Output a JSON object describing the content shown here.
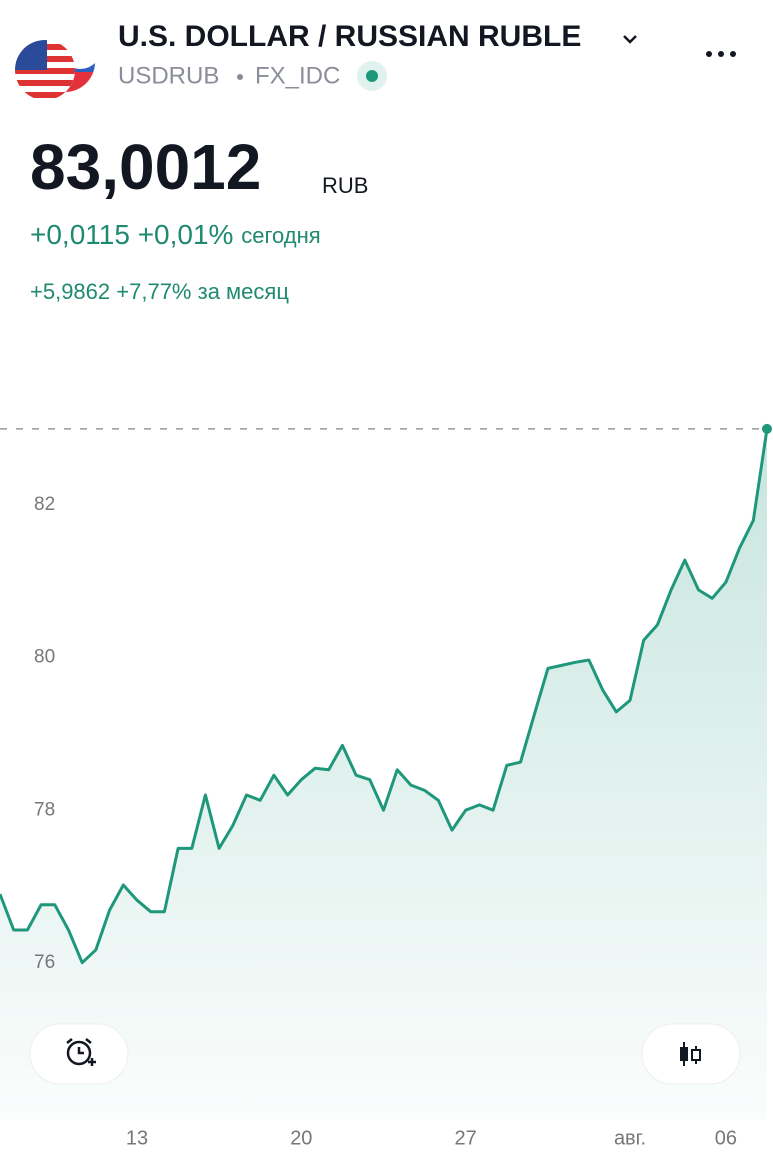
{
  "header": {
    "title": "U.S. DOLLAR / RUSSIAN RUBLE",
    "symbol": "USDRUB",
    "exchange": "FX_IDC",
    "price": "83,0012",
    "currency": "RUB",
    "change": "+0,0115",
    "change_pct": "+0,01%",
    "change_period": "сегодня",
    "month_change": "+5,9862",
    "month_change_pct": "+7,77%",
    "month_period": "за месяц"
  },
  "chart_data": {
    "type": "area",
    "color": "#1f977b",
    "categories": [
      null,
      null,
      null,
      null,
      null,
      null,
      null,
      null,
      null,
      null,
      "13",
      null,
      null,
      null,
      null,
      null,
      null,
      null,
      null,
      null,
      null,
      null,
      "20",
      null,
      null,
      null,
      null,
      null,
      null,
      null,
      null,
      null,
      null,
      null,
      "27",
      null,
      null,
      null,
      null,
      null,
      null,
      null,
      null,
      null,
      null,
      null,
      "авг.",
      null,
      null,
      null,
      null,
      null,
      null,
      "06",
      null,
      null,
      null
    ],
    "values": [
      76.9,
      76.43,
      76.43,
      76.76,
      76.76,
      76.43,
      76.0,
      76.17,
      76.69,
      77.02,
      76.82,
      76.67,
      76.67,
      77.5,
      77.5,
      78.2,
      77.5,
      77.8,
      78.2,
      78.13,
      78.46,
      78.2,
      78.4,
      78.55,
      78.53,
      78.85,
      78.46,
      78.4,
      78.0,
      78.53,
      78.33,
      78.26,
      78.13,
      77.74,
      78.0,
      78.07,
      78.0,
      78.59,
      78.63,
      79.25,
      79.86,
      79.9,
      79.94,
      79.97,
      79.58,
      79.29,
      79.44,
      80.23,
      80.43,
      80.89,
      81.28,
      80.89,
      80.78,
      80.99,
      81.44,
      81.8,
      83.0012
    ],
    "ylim": [
      74.2,
      83.38
    ],
    "yticks": [
      76,
      78,
      80,
      82
    ]
  }
}
